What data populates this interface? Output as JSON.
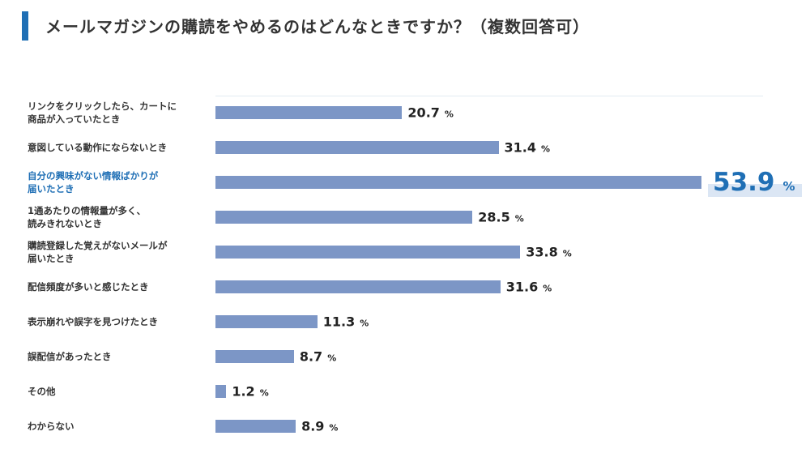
{
  "title": "メールマガジンの購読をやめるのはどんなときですか？（複数回答可）",
  "colors": {
    "bar": "#7c96c6",
    "accent": "#1f6fb5",
    "highlight_bg": "#dbe6f4"
  },
  "chart_data": {
    "type": "bar",
    "orientation": "horizontal",
    "unit": "%",
    "xlim": [
      0,
      60
    ],
    "highlight_index": 2,
    "categories": [
      "リンクをクリックしたら、カートに\n商品が入っていたとき",
      "意図している動作にならないとき",
      "自分の興味がない情報ばかりが\n届いたとき",
      "1通あたりの情報量が多く、\n読みきれないとき",
      "購読登録した覚えがないメールが\n届いたとき",
      "配信頻度が多いと感じたとき",
      "表示崩れや誤字を見つけたとき",
      "誤配信があったとき",
      "その他",
      "わからない"
    ],
    "values": [
      20.7,
      31.4,
      53.9,
      28.5,
      33.8,
      31.6,
      11.3,
      8.7,
      1.2,
      8.9
    ],
    "value_labels": [
      "20.7",
      "31.4",
      "53.9",
      "28.5",
      "33.8",
      "31.6",
      "11.3",
      "8.7",
      "1.2",
      "8.9"
    ]
  }
}
